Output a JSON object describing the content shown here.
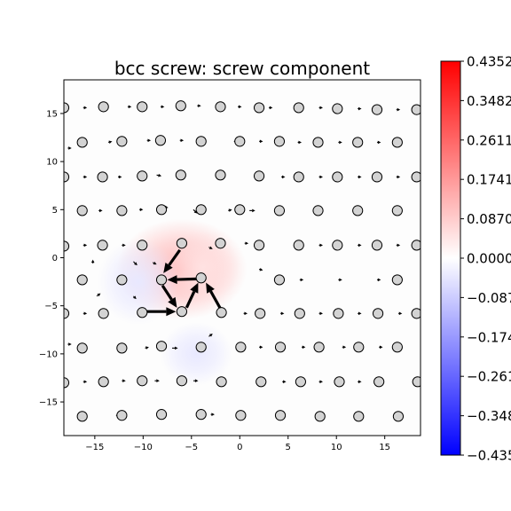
{
  "chart_data": {
    "type": "scatter",
    "title": "bcc screw: screw component",
    "xlabel": "",
    "ylabel": "",
    "xlim": [
      -18.2,
      18.7
    ],
    "ylim": [
      -18.5,
      18.5
    ],
    "xticks": [
      -15,
      -10,
      -5,
      0,
      5,
      10,
      15
    ],
    "yticks": [
      -15,
      -10,
      -5,
      0,
      5,
      10,
      15
    ],
    "grid": false,
    "colorbar": {
      "colormap": "bwr",
      "min": -0.4352,
      "max": 0.4352,
      "tick_labels": [
        "0.4352",
        "0.3482",
        "0.2611",
        "0.1741",
        "0.0870",
        "0.0000",
        "-0.087",
        "-0.174",
        "-0.261",
        "-0.348",
        "-0.435"
      ],
      "tick_values": [
        0.4352,
        0.3482,
        0.2611,
        0.1741,
        0.087,
        0.0,
        -0.087,
        -0.1741,
        -0.2611,
        -0.3482,
        -0.4352
      ]
    },
    "field_blobs": [
      {
        "x": -6.0,
        "y": -1.2,
        "sx": 4.5,
        "sy": 3.5,
        "value": 0.12
      },
      {
        "x": -3.8,
        "y": -1.0,
        "sx": 2.5,
        "sy": 2.5,
        "value": 0.05
      },
      {
        "x": -10.5,
        "y": -2.5,
        "sx": 2.8,
        "sy": 3.0,
        "value": -0.04
      },
      {
        "x": -4.5,
        "y": -10.0,
        "sx": 2.5,
        "sy": 2.2,
        "value": -0.04
      }
    ],
    "atoms": [
      [
        -18.2,
        15.6
      ],
      [
        -14.1,
        15.7
      ],
      [
        -10.1,
        15.7
      ],
      [
        -6.1,
        15.8
      ],
      [
        -2.0,
        15.7
      ],
      [
        2.0,
        15.6
      ],
      [
        6.1,
        15.6
      ],
      [
        10.1,
        15.5
      ],
      [
        14.2,
        15.4
      ],
      [
        18.3,
        15.4
      ],
      [
        -16.3,
        12.0
      ],
      [
        -12.2,
        12.1
      ],
      [
        -8.2,
        12.2
      ],
      [
        -4.0,
        12.1
      ],
      [
        0.0,
        12.1
      ],
      [
        4.1,
        12.1
      ],
      [
        8.1,
        12.0
      ],
      [
        12.2,
        12.0
      ],
      [
        16.3,
        12.0
      ],
      [
        -18.2,
        8.4
      ],
      [
        -14.2,
        8.4
      ],
      [
        -10.1,
        8.5
      ],
      [
        -6.1,
        8.6
      ],
      [
        -2.0,
        8.6
      ],
      [
        2.0,
        8.5
      ],
      [
        6.1,
        8.4
      ],
      [
        10.1,
        8.4
      ],
      [
        14.2,
        8.4
      ],
      [
        18.3,
        8.4
      ],
      [
        -16.3,
        4.9
      ],
      [
        -12.2,
        4.9
      ],
      [
        -8.1,
        5.0
      ],
      [
        -4.0,
        5.0
      ],
      [
        0.0,
        5.0
      ],
      [
        4.1,
        4.9
      ],
      [
        8.1,
        4.9
      ],
      [
        12.2,
        4.9
      ],
      [
        16.3,
        4.9
      ],
      [
        -18.2,
        1.2
      ],
      [
        -14.2,
        1.3
      ],
      [
        -10.1,
        1.3
      ],
      [
        -6.0,
        1.5
      ],
      [
        -2.0,
        1.5
      ],
      [
        2.0,
        1.3
      ],
      [
        6.1,
        1.3
      ],
      [
        10.1,
        1.3
      ],
      [
        14.2,
        1.3
      ],
      [
        18.3,
        1.3
      ],
      [
        -16.3,
        -2.3
      ],
      [
        -12.2,
        -2.3
      ],
      [
        -8.1,
        -2.3
      ],
      [
        -4.0,
        -2.1
      ],
      [
        4.1,
        -2.3
      ],
      [
        16.3,
        -2.3
      ],
      [
        -18.2,
        -5.8
      ],
      [
        -14.1,
        -5.8
      ],
      [
        -10.1,
        -5.7
      ],
      [
        -6.0,
        -5.6
      ],
      [
        -1.9,
        -5.7
      ],
      [
        2.1,
        -5.8
      ],
      [
        6.2,
        -5.8
      ],
      [
        10.2,
        -5.8
      ],
      [
        14.3,
        -5.8
      ],
      [
        18.3,
        -5.8
      ],
      [
        -16.3,
        -9.4
      ],
      [
        -12.2,
        -9.4
      ],
      [
        -8.1,
        -9.2
      ],
      [
        -4.0,
        -9.3
      ],
      [
        0.1,
        -9.3
      ],
      [
        4.2,
        -9.3
      ],
      [
        8.2,
        -9.3
      ],
      [
        12.3,
        -9.3
      ],
      [
        16.3,
        -9.3
      ],
      [
        -18.2,
        -13.0
      ],
      [
        -14.1,
        -12.9
      ],
      [
        -10.1,
        -12.8
      ],
      [
        -6.0,
        -12.8
      ],
      [
        -1.9,
        -12.9
      ],
      [
        2.2,
        -12.9
      ],
      [
        6.3,
        -12.9
      ],
      [
        10.3,
        -12.9
      ],
      [
        14.4,
        -12.9
      ],
      [
        18.4,
        -12.9
      ],
      [
        -16.3,
        -16.5
      ],
      [
        -12.2,
        -16.4
      ],
      [
        -8.1,
        -16.3
      ],
      [
        -4.0,
        -16.3
      ],
      [
        0.1,
        -16.4
      ],
      [
        4.2,
        -16.4
      ],
      [
        8.3,
        -16.5
      ],
      [
        12.3,
        -16.5
      ],
      [
        16.4,
        -16.5
      ]
    ],
    "arrows_major": [
      [
        -6.2,
        0.8,
        -7.9,
        -1.6
      ],
      [
        -4.4,
        -2.2,
        -7.5,
        -2.3
      ],
      [
        -9.9,
        -5.6,
        -6.6,
        -5.6
      ],
      [
        -5.5,
        -5.2,
        -4.3,
        -2.6
      ],
      [
        -2.0,
        -5.3,
        -3.5,
        -2.6
      ],
      [
        -8.0,
        -2.9,
        -6.5,
        -5.2
      ]
    ],
    "arrows_minor": [
      [
        -8.0,
        5.3,
        -7.4,
        5.2
      ],
      [
        -4.8,
        5.0,
        -4.4,
        4.6
      ],
      [
        1.0,
        4.9,
        1.6,
        4.9
      ],
      [
        -3.2,
        1.1,
        -2.8,
        0.9
      ],
      [
        -9.0,
        -0.5,
        -8.6,
        -0.7
      ],
      [
        -11.0,
        -0.4,
        -10.6,
        -0.8
      ],
      [
        -15.2,
        -0.6,
        -15.2,
        -0.2
      ],
      [
        -14.8,
        -4.0,
        -14.4,
        -3.7
      ],
      [
        -11.0,
        -4.0,
        -10.7,
        -4.3
      ],
      [
        -3.2,
        -8.2,
        -2.8,
        -7.9
      ],
      [
        -7.0,
        -9.4,
        -6.4,
        -9.4
      ],
      [
        -9.8,
        -9.4,
        -9.4,
        -9.3
      ],
      [
        -4.8,
        -12.8,
        -4.3,
        -12.8
      ],
      [
        -8.8,
        -12.8,
        -8.3,
        -12.8
      ],
      [
        -12.2,
        -12.8,
        -11.8,
        -12.8
      ],
      [
        2.0,
        -1.2,
        2.4,
        -1.3
      ],
      [
        0.5,
        1.5,
        0.9,
        1.5
      ],
      [
        -9.6,
        12.2,
        -9.2,
        12.2
      ],
      [
        -12.6,
        8.4,
        -12.2,
        8.4
      ],
      [
        -8.6,
        8.6,
        -8.1,
        8.5
      ],
      [
        4.3,
        8.4,
        4.7,
        8.4
      ],
      [
        -1.2,
        4.9,
        -0.8,
        5.0
      ],
      [
        6.0,
        12.0,
        6.4,
        12.0
      ],
      [
        -13.6,
        12.0,
        -13.2,
        12.1
      ],
      [
        -14.6,
        4.9,
        -14.2,
        4.9
      ],
      [
        -10.4,
        5.0,
        -10.0,
        5.0
      ],
      [
        -0.6,
        12.1,
        -0.2,
        12.1
      ],
      [
        3.0,
        15.6,
        3.4,
        15.6
      ],
      [
        -11.6,
        15.7,
        -11.2,
        15.7
      ],
      [
        -4.4,
        15.8,
        -4.0,
        15.8
      ],
      [
        -12.8,
        -16.4,
        -12.4,
        -16.4
      ],
      [
        -3.0,
        -16.3,
        -2.6,
        -16.3
      ],
      [
        4.4,
        -12.9,
        4.8,
        -12.9
      ],
      [
        8.2,
        -12.9,
        8.6,
        -12.9
      ],
      [
        12.2,
        -12.9,
        12.6,
        -12.9
      ],
      [
        -16.2,
        -12.9,
        -15.8,
        -12.9
      ],
      [
        10.6,
        -9.3,
        11.0,
        -9.3
      ],
      [
        14.4,
        -9.3,
        14.8,
        -9.3
      ],
      [
        6.4,
        -9.3,
        6.8,
        -9.3
      ],
      [
        2.0,
        -9.3,
        2.4,
        -9.3
      ],
      [
        0.4,
        -5.8,
        0.8,
        -5.8
      ],
      [
        4.2,
        -5.8,
        4.6,
        -5.8
      ],
      [
        8.2,
        -5.8,
        8.6,
        -5.8
      ],
      [
        12.2,
        -5.8,
        12.6,
        -5.8
      ],
      [
        16.4,
        -5.8,
        16.8,
        -5.8
      ],
      [
        -16.2,
        -5.8,
        -15.8,
        -5.8
      ],
      [
        6.2,
        -2.3,
        6.6,
        -2.3
      ],
      [
        10.2,
        -2.3,
        10.6,
        -2.3
      ],
      [
        14.2,
        -2.3,
        14.6,
        -2.3
      ],
      [
        8.2,
        1.3,
        8.6,
        1.3
      ],
      [
        12.2,
        1.3,
        12.6,
        1.3
      ],
      [
        16.2,
        1.3,
        16.6,
        1.3
      ],
      [
        -16.2,
        1.3,
        -15.8,
        1.3
      ],
      [
        -12.2,
        1.3,
        -11.8,
        1.3
      ],
      [
        8.2,
        4.9,
        8.6,
        4.9
      ],
      [
        12.2,
        4.9,
        12.6,
        4.9
      ],
      [
        16.2,
        8.4,
        16.6,
        8.4
      ],
      [
        12.2,
        8.4,
        12.6,
        8.4
      ],
      [
        8.2,
        8.4,
        8.6,
        8.4
      ],
      [
        -16.2,
        8.4,
        -15.8,
        8.4
      ],
      [
        10.2,
        12.0,
        10.6,
        12.0
      ],
      [
        14.2,
        12.0,
        14.6,
        12.0
      ],
      [
        2.0,
        12.1,
        2.4,
        12.1
      ],
      [
        -6.2,
        12.2,
        -5.8,
        12.2
      ],
      [
        -16.2,
        15.6,
        -15.8,
        15.6
      ],
      [
        -8.2,
        15.7,
        -7.8,
        15.7
      ],
      [
        -0.2,
        15.7,
        0.2,
        15.7
      ],
      [
        8.2,
        15.6,
        8.6,
        15.6
      ],
      [
        12.2,
        15.5,
        12.6,
        15.5
      ],
      [
        16.2,
        15.4,
        16.6,
        15.4
      ],
      [
        -17.8,
        11.4,
        -17.4,
        11.4
      ],
      [
        -17.8,
        -9.0,
        -17.4,
        -9.0
      ]
    ]
  }
}
